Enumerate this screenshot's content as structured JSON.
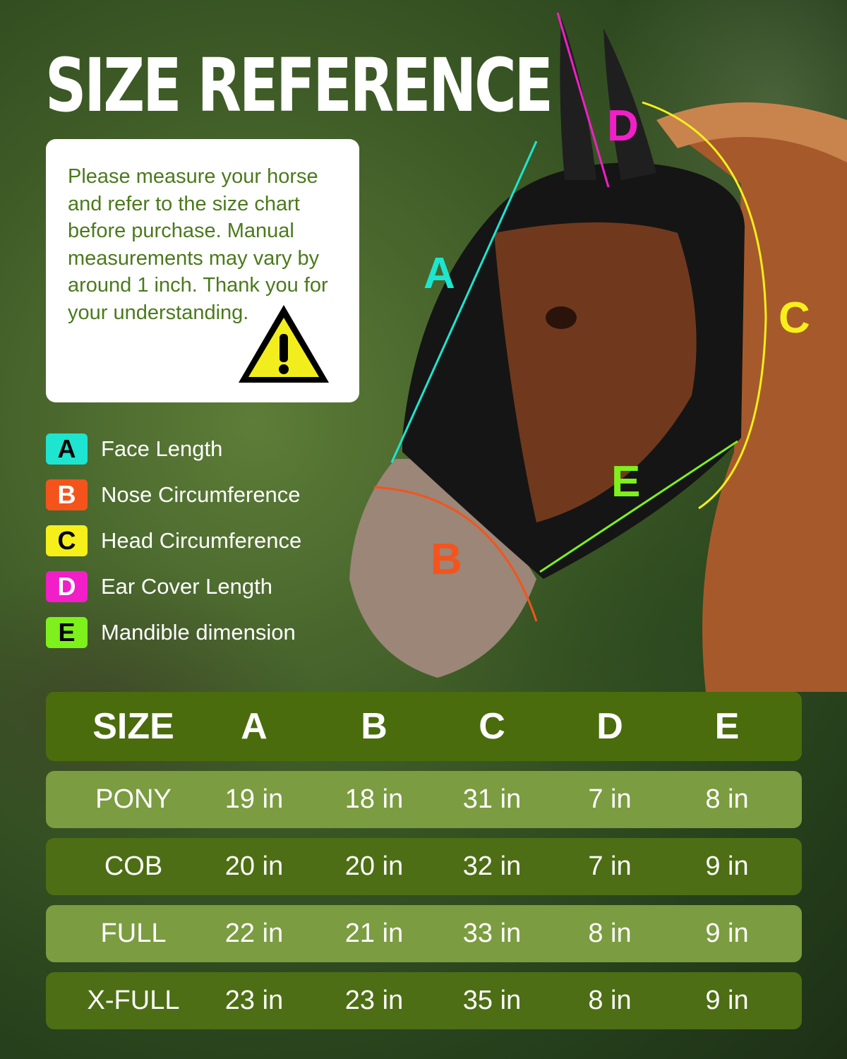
{
  "title": "SIZE REFERENCE",
  "note": "Please measure your horse and refer to the size chart before purchase. Manual measurements may vary by around 1 inch. Thank you for your understanding.",
  "warning_icon": "warning-triangle-icon",
  "legend": [
    {
      "key": "A",
      "label": "Face Length",
      "color": "#1de5d0",
      "text_color": "#000000"
    },
    {
      "key": "B",
      "label": "Nose Circumference",
      "color": "#f4541c",
      "text_color": "#ffffff"
    },
    {
      "key": "C",
      "label": "Head Circumference",
      "color": "#f7ef1a",
      "text_color": "#000000"
    },
    {
      "key": "D",
      "label": "Ear Cover Length",
      "color": "#f21ec8",
      "text_color": "#ffffff"
    },
    {
      "key": "E",
      "label": "Mandible dimension",
      "color": "#7ef01c",
      "text_color": "#000000"
    }
  ],
  "diagram_labels": {
    "A": "A",
    "B": "B",
    "C": "C",
    "D": "D",
    "E": "E"
  },
  "table": {
    "headers": [
      "SIZE",
      "A",
      "B",
      "C",
      "D",
      "E"
    ],
    "rows": [
      [
        "PONY",
        "19 in",
        "18 in",
        "31 in",
        "7 in",
        "8 in"
      ],
      [
        "COB",
        "20 in",
        "20 in",
        "32 in",
        "7 in",
        "9 in"
      ],
      [
        "FULL",
        "22 in",
        "21 in",
        "33 in",
        "8 in",
        "9 in"
      ],
      [
        "X-FULL",
        "23 in",
        "23 in",
        "35 in",
        "8 in",
        "9 in"
      ]
    ]
  }
}
